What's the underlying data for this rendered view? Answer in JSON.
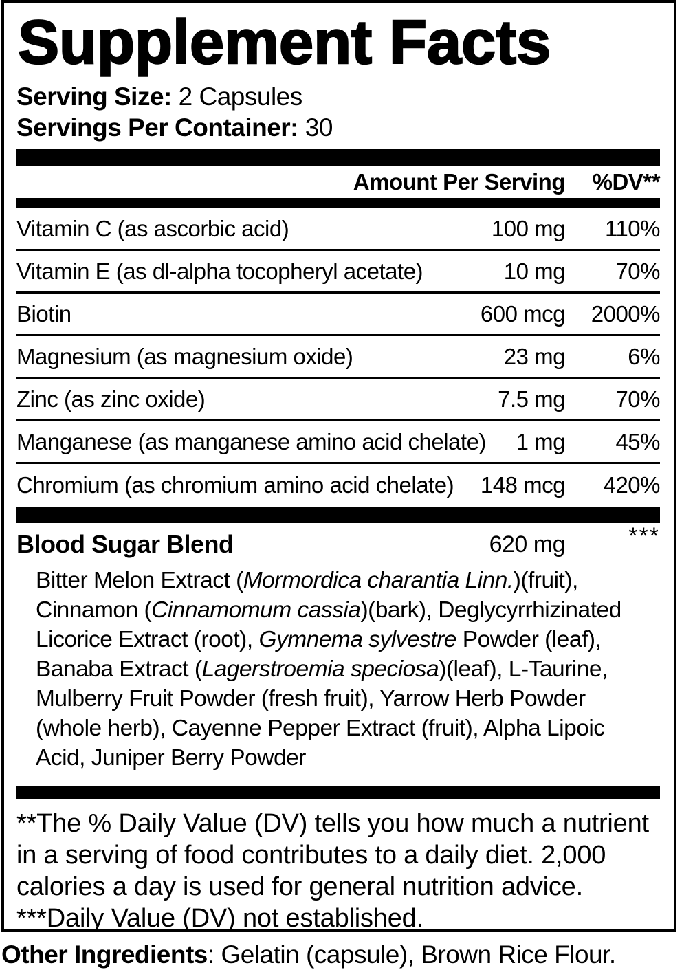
{
  "label": {
    "title": "Supplement Facts",
    "serving_size_label": "Serving Size:",
    "serving_size_value": " 2 Capsules",
    "servings_per_container_label": "Servings Per Container:",
    "servings_per_container_value": " 30",
    "column_headers": {
      "amount": "Amount Per Serving",
      "dv": "%DV**"
    },
    "nutrients": [
      {
        "name": "Vitamin C (as ascorbic acid)",
        "amount": "100 mg",
        "dv": "110%"
      },
      {
        "name": "Vitamin E (as dl-alpha tocopheryl acetate)",
        "amount": "10 mg",
        "dv": "70%"
      },
      {
        "name": "Biotin",
        "amount": "600 mcg",
        "dv": "2000%"
      },
      {
        "name": "Magnesium (as magnesium oxide)",
        "amount": "23 mg",
        "dv": "6%"
      },
      {
        "name": "Zinc (as zinc oxide)",
        "amount": "7.5 mg",
        "dv": "70%"
      },
      {
        "name": "Manganese (as manganese amino acid chelate)",
        "amount": "1 mg",
        "dv": "45%"
      },
      {
        "name": "Chromium (as chromium amino acid chelate)",
        "amount": "148 mcg",
        "dv": "420%"
      }
    ],
    "blend": {
      "name": "Blood Sugar Blend",
      "amount": "620 mg",
      "dv": "***",
      "description_segments": [
        {
          "text": "Bitter Melon Extract (",
          "italic": false
        },
        {
          "text": "Mormordica charantia Linn.",
          "italic": true
        },
        {
          "text": ")(fruit), Cinnamon (",
          "italic": false
        },
        {
          "text": "Cinnamomum cassia",
          "italic": true
        },
        {
          "text": ")(bark), Deglycyrrhizinated Licorice Extract (root), ",
          "italic": false
        },
        {
          "text": "Gymnema sylvestre",
          "italic": true
        },
        {
          "text": " Powder (leaf), Banaba Extract (",
          "italic": false
        },
        {
          "text": "Lagerstroemia speciosa",
          "italic": true
        },
        {
          "text": ")(leaf), L-Taurine, Mulberry Fruit Powder (fresh fruit), Yarrow Herb Powder (whole herb), Cayenne Pepper Extract (fruit), Alpha Lipoic Acid, Juniper Berry Powder",
          "italic": false
        }
      ]
    },
    "footnotes": [
      "**The % Daily Value (DV) tells you how much a nutrient in a serving of food contributes to a daily diet. 2,000 calories a day is used for general nutrition advice.",
      "***Daily Value (DV) not established."
    ],
    "other_ingredients_label": "Other Ingredients",
    "other_ingredients_value": ": Gelatin (capsule), Brown Rice Flour.",
    "colors": {
      "text": "#000000",
      "background": "#ffffff"
    }
  }
}
